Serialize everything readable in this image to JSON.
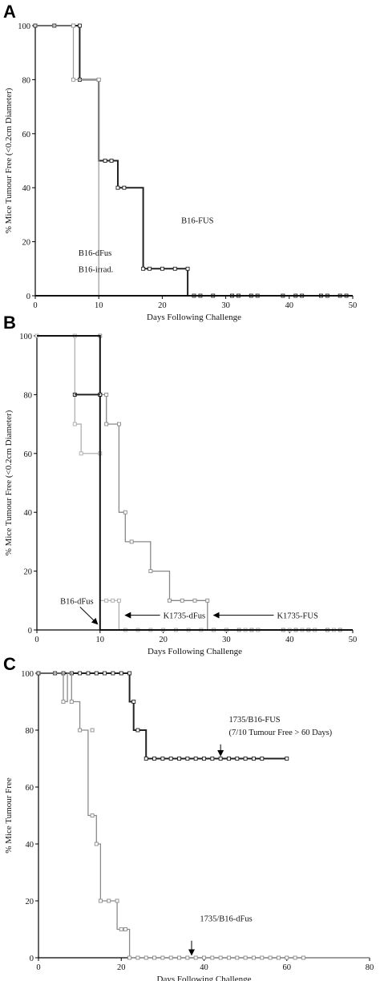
{
  "chart_data": [
    {
      "panel": "A",
      "type": "line",
      "xlabel": "Days Following Challenge",
      "ylabel": "% Mice Tumour Free (<0.2cm Diameter)",
      "xlim": [
        0,
        50
      ],
      "ylim": [
        0,
        100
      ],
      "xticks": [
        0,
        10,
        20,
        30,
        40,
        50
      ],
      "yticks": [
        0,
        20,
        40,
        60,
        80,
        100
      ],
      "series": [
        {
          "name": "B16-FUS",
          "color": "#222222",
          "width": 2,
          "step": [
            [
              0,
              100
            ],
            [
              7,
              100
            ],
            [
              7,
              80
            ],
            [
              10,
              80
            ],
            [
              10,
              50
            ],
            [
              13,
              50
            ],
            [
              13,
              40
            ],
            [
              17,
              40
            ],
            [
              17,
              10
            ],
            [
              24,
              10
            ],
            [
              24,
              0
            ],
            [
              50,
              0
            ]
          ],
          "markers": [
            [
              0,
              100
            ],
            [
              3,
              100
            ],
            [
              6,
              100
            ],
            [
              7,
              100
            ],
            [
              7,
              80
            ],
            [
              10,
              80
            ],
            [
              11,
              50
            ],
            [
              12,
              50
            ],
            [
              13,
              40
            ],
            [
              14,
              40
            ],
            [
              17,
              10
            ],
            [
              18,
              10
            ],
            [
              20,
              10
            ],
            [
              22,
              10
            ],
            [
              24,
              10
            ],
            [
              25,
              0
            ],
            [
              26,
              0
            ],
            [
              28,
              0
            ],
            [
              31,
              0
            ],
            [
              32,
              0
            ],
            [
              34,
              0
            ],
            [
              35,
              0
            ],
            [
              39,
              0
            ],
            [
              41,
              0
            ],
            [
              42,
              0
            ],
            [
              45,
              0
            ],
            [
              46,
              0
            ],
            [
              48,
              0
            ],
            [
              49,
              0
            ]
          ]
        },
        {
          "name": "B16-irrad.",
          "color": "#9a9a9a",
          "width": 1.2,
          "step": [
            [
              0,
              100
            ],
            [
              6,
              100
            ],
            [
              6,
              80
            ],
            [
              10,
              80
            ],
            [
              10,
              0
            ],
            [
              50,
              0
            ]
          ],
          "markers": [
            [
              6,
              100
            ],
            [
              6,
              80
            ],
            [
              10,
              80
            ]
          ]
        },
        {
          "name": "B16-dFus",
          "color": "#111111",
          "width": 2,
          "step": [
            [
              0,
              0
            ],
            [
              50,
              0
            ]
          ],
          "markers": []
        }
      ],
      "annotations": [
        {
          "text": "B16-FUS",
          "x": 23,
          "y": 28
        },
        {
          "text": "B16-dFus",
          "x": 6.8,
          "y": 16
        },
        {
          "text": "B16-irrad.",
          "x": 6.8,
          "y": 10
        }
      ]
    },
    {
      "panel": "B",
      "type": "line",
      "xlabel": "Days Following Challenge",
      "ylabel": "% Mice Tumour Free (<0.2cm Diameter)",
      "xlim": [
        0,
        50
      ],
      "ylim": [
        0,
        100
      ],
      "xticks": [
        0,
        10,
        20,
        30,
        40,
        50
      ],
      "yticks": [
        0,
        20,
        40,
        60,
        80,
        100
      ],
      "series": [
        {
          "name": "K1735-FUS",
          "color": "#888888",
          "width": 1.3,
          "step": [
            [
              0,
              100
            ],
            [
              10,
              100
            ],
            [
              10,
              80
            ],
            [
              11,
              80
            ],
            [
              11,
              70
            ],
            [
              13,
              70
            ],
            [
              13,
              40
            ],
            [
              14,
              40
            ],
            [
              14,
              30
            ],
            [
              18,
              30
            ],
            [
              18,
              20
            ],
            [
              21,
              20
            ],
            [
              21,
              10
            ],
            [
              27,
              10
            ],
            [
              27,
              0
            ],
            [
              50,
              0
            ]
          ],
          "markers": [
            [
              10,
              100
            ],
            [
              10,
              80
            ],
            [
              11,
              80
            ],
            [
              11,
              70
            ],
            [
              13,
              70
            ],
            [
              14,
              40
            ],
            [
              15,
              30
            ],
            [
              18,
              20
            ],
            [
              21,
              10
            ],
            [
              23,
              10
            ],
            [
              25,
              10
            ],
            [
              27,
              10
            ],
            [
              28,
              0
            ],
            [
              30,
              0
            ],
            [
              32,
              0
            ],
            [
              34,
              0
            ],
            [
              35,
              0
            ],
            [
              39,
              0
            ],
            [
              41,
              0
            ],
            [
              43,
              0
            ],
            [
              44,
              0
            ],
            [
              46,
              0
            ],
            [
              48,
              0
            ]
          ]
        },
        {
          "name": "K1735-dFus",
          "color": "#aaaaaa",
          "width": 1.2,
          "step": [
            [
              0,
              100
            ],
            [
              6,
              100
            ],
            [
              6,
              70
            ],
            [
              7,
              70
            ],
            [
              7,
              60
            ],
            [
              10,
              60
            ],
            [
              10,
              10
            ],
            [
              13,
              10
            ],
            [
              13,
              0
            ],
            [
              50,
              0
            ]
          ],
          "markers": [
            [
              0,
              100
            ],
            [
              6,
              100
            ],
            [
              6,
              70
            ],
            [
              7,
              60
            ],
            [
              10,
              60
            ],
            [
              11,
              10
            ],
            [
              12,
              10
            ],
            [
              13,
              10
            ],
            [
              14,
              0
            ],
            [
              16,
              0
            ],
            [
              18,
              0
            ],
            [
              20,
              0
            ],
            [
              22,
              0
            ],
            [
              24,
              0
            ],
            [
              26,
              0
            ],
            [
              28,
              0
            ],
            [
              30,
              0
            ],
            [
              33,
              0
            ],
            [
              35,
              0
            ],
            [
              40,
              0
            ],
            [
              42,
              0
            ],
            [
              44,
              0
            ],
            [
              47,
              0
            ]
          ]
        },
        {
          "name": "B16-dFus",
          "color": "#111111",
          "width": 2,
          "step": [
            [
              0,
              100
            ],
            [
              10,
              100
            ],
            [
              10,
              0
            ],
            [
              50,
              0
            ]
          ],
          "markers": [
            [
              6,
              80
            ],
            [
              10,
              80
            ]
          ]
        },
        {
          "name": "",
          "color": "#222222",
          "width": 2,
          "step": [
            [
              6,
              80
            ],
            [
              10,
              80
            ]
          ],
          "markers": []
        }
      ],
      "annotations": [
        {
          "text": "B16-dFus",
          "x": 3.7,
          "y": 10,
          "arrow_to": [
            9.6,
            2
          ]
        },
        {
          "text": "K1735-dFus",
          "x": 20,
          "y": 5,
          "arrow_to": [
            14,
            5
          ]
        },
        {
          "text": "K1735-FUS",
          "x": 38,
          "y": 5,
          "arrow_to": [
            28,
            5
          ]
        }
      ]
    },
    {
      "panel": "C",
      "type": "line",
      "xlabel": "Days Following Challenge",
      "ylabel": "% Mice Tumour Free",
      "xlim": [
        0,
        80
      ],
      "ylim": [
        0,
        100
      ],
      "xticks": [
        0,
        20,
        40,
        60,
        80
      ],
      "yticks": [
        0,
        20,
        40,
        60,
        80,
        100
      ],
      "series": [
        {
          "name": "1735/B16-FUS",
          "color": "#222222",
          "width": 2,
          "step": [
            [
              0,
              100
            ],
            [
              22,
              100
            ],
            [
              22,
              90
            ],
            [
              23,
              90
            ],
            [
              23,
              80
            ],
            [
              26,
              80
            ],
            [
              26,
              70
            ],
            [
              60,
              70
            ]
          ],
          "markers": [
            [
              0,
              100
            ],
            [
              4,
              100
            ],
            [
              6,
              100
            ],
            [
              8,
              100
            ],
            [
              10,
              100
            ],
            [
              12,
              100
            ],
            [
              14,
              100
            ],
            [
              16,
              100
            ],
            [
              18,
              100
            ],
            [
              20,
              100
            ],
            [
              22,
              100
            ],
            [
              23,
              90
            ],
            [
              24,
              80
            ],
            [
              26,
              70
            ],
            [
              28,
              70
            ],
            [
              30,
              70
            ],
            [
              32,
              70
            ],
            [
              34,
              70
            ],
            [
              36,
              70
            ],
            [
              38,
              70
            ],
            [
              40,
              70
            ],
            [
              42,
              70
            ],
            [
              44,
              70
            ],
            [
              46,
              70
            ],
            [
              48,
              70
            ],
            [
              50,
              70
            ],
            [
              52,
              70
            ],
            [
              54,
              70
            ],
            [
              60,
              70
            ]
          ]
        },
        {
          "name": "1735/B16-dFus",
          "color": "#8a8a8a",
          "width": 1.3,
          "step": [
            [
              0,
              100
            ],
            [
              6,
              100
            ],
            [
              6,
              90
            ],
            [
              7,
              90
            ],
            [
              7,
              100
            ],
            [
              8,
              100
            ],
            [
              8,
              90
            ],
            [
              10,
              90
            ],
            [
              10,
              80
            ],
            [
              12,
              80
            ],
            [
              12,
              50
            ],
            [
              14,
              50
            ],
            [
              14,
              40
            ],
            [
              15,
              40
            ],
            [
              15,
              20
            ],
            [
              19,
              20
            ],
            [
              19,
              10
            ],
            [
              22,
              10
            ],
            [
              22,
              0
            ],
            [
              80,
              0
            ]
          ],
          "markers": [
            [
              6,
              90
            ],
            [
              8,
              90
            ],
            [
              10,
              80
            ],
            [
              13,
              80
            ],
            [
              13,
              50
            ],
            [
              14,
              40
            ],
            [
              15,
              20
            ],
            [
              17,
              20
            ],
            [
              19,
              20
            ],
            [
              20,
              10
            ],
            [
              21,
              10
            ],
            [
              22,
              0
            ],
            [
              24,
              0
            ],
            [
              26,
              0
            ],
            [
              28,
              0
            ],
            [
              30,
              0
            ],
            [
              32,
              0
            ],
            [
              34,
              0
            ],
            [
              36,
              0
            ],
            [
              38,
              0
            ],
            [
              40,
              0
            ],
            [
              42,
              0
            ],
            [
              44,
              0
            ],
            [
              46,
              0
            ],
            [
              48,
              0
            ],
            [
              50,
              0
            ],
            [
              52,
              0
            ],
            [
              54,
              0
            ],
            [
              56,
              0
            ],
            [
              58,
              0
            ],
            [
              60,
              0
            ],
            [
              62,
              0
            ],
            [
              64,
              0
            ]
          ]
        }
      ],
      "annotations": [
        {
          "text": "1735/B16-FUS",
          "x": 46,
          "y": 84
        },
        {
          "text": "(7/10 Tumour Free > 60 Days)",
          "x": 46,
          "y": 79.5
        },
        {
          "text": "1735/B16-dFus",
          "x": 39,
          "y": 14
        }
      ],
      "arrows": [
        {
          "from": [
            44,
            75
          ],
          "to": [
            44,
            71
          ]
        },
        {
          "from": [
            37,
            6
          ],
          "to": [
            37,
            1
          ]
        }
      ]
    }
  ]
}
